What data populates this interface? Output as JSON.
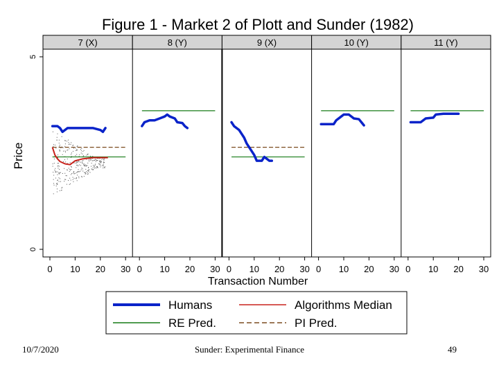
{
  "chart_data": {
    "type": "line",
    "title": "Figure 1 - Market 2 of Plott and Sunder (1982)",
    "xlabel": "Transaction Number",
    "ylabel": "Price",
    "y_ticks": [
      "0",
      "5"
    ],
    "y_tick_values": [
      0,
      5
    ],
    "xlim": [
      0,
      30
    ],
    "ylim": [
      0,
      5
    ],
    "x_ticks": [
      0,
      10,
      20,
      30
    ],
    "legend": {
      "placement": "bottom",
      "entries": [
        {
          "name": "Humans",
          "color": "#0a23c9",
          "style": "thick-solid"
        },
        {
          "name": "Algorithms Median",
          "color": "#c8211b",
          "style": "solid"
        },
        {
          "name": "RE Pred.",
          "color": "#157a15",
          "style": "solid"
        },
        {
          "name": "PI Pred.",
          "color": "#7a4a1e",
          "style": "dashed"
        }
      ]
    },
    "panels": [
      {
        "label": "7 (X)",
        "humans": [
          [
            1,
            3.2
          ],
          [
            3,
            3.2
          ],
          [
            4,
            3.15
          ],
          [
            5,
            3.05
          ],
          [
            6,
            3.1
          ],
          [
            7,
            3.15
          ],
          [
            10,
            3.15
          ],
          [
            14,
            3.15
          ],
          [
            17,
            3.15
          ],
          [
            20,
            3.1
          ],
          [
            21,
            3.05
          ],
          [
            22,
            3.15
          ]
        ],
        "algorithms_median": [
          [
            1,
            2.65
          ],
          [
            2,
            2.45
          ],
          [
            3,
            2.35
          ],
          [
            4,
            2.28
          ],
          [
            6,
            2.22
          ],
          [
            8,
            2.2
          ],
          [
            10,
            2.3
          ],
          [
            13,
            2.35
          ],
          [
            17,
            2.38
          ],
          [
            23,
            2.38
          ]
        ],
        "re_pred": {
          "range": [
            1,
            30
          ],
          "value": 2.4
        },
        "pi_pred": {
          "range": [
            1,
            30
          ],
          "value": 2.65
        },
        "scatter_band": {
          "x_range": [
            1,
            22
          ],
          "y_range": [
            1.1,
            2.8
          ]
        }
      },
      {
        "label": "8 (Y)",
        "humans": [
          [
            1,
            3.2
          ],
          [
            2,
            3.3
          ],
          [
            4,
            3.35
          ],
          [
            6,
            3.35
          ],
          [
            8,
            3.4
          ],
          [
            10,
            3.45
          ],
          [
            11,
            3.5
          ],
          [
            12,
            3.45
          ],
          [
            14,
            3.4
          ],
          [
            15,
            3.3
          ],
          [
            17,
            3.28
          ],
          [
            18,
            3.2
          ],
          [
            19,
            3.15
          ]
        ],
        "re_pred": {
          "range": [
            1,
            30
          ],
          "value": 3.6
        }
      },
      {
        "label": "9 (X)",
        "humans": [
          [
            1,
            3.3
          ],
          [
            2,
            3.2
          ],
          [
            4,
            3.1
          ],
          [
            5,
            3.0
          ],
          [
            6,
            2.9
          ],
          [
            7,
            2.75
          ],
          [
            9,
            2.55
          ],
          [
            10,
            2.45
          ],
          [
            11,
            2.3
          ],
          [
            13,
            2.3
          ],
          [
            14,
            2.4
          ],
          [
            15,
            2.35
          ],
          [
            16,
            2.3
          ],
          [
            17,
            2.3
          ]
        ],
        "re_pred": {
          "range": [
            1,
            30
          ],
          "value": 2.4
        },
        "pi_pred": {
          "range": [
            1,
            30
          ],
          "value": 2.65
        }
      },
      {
        "label": "10 (Y)",
        "humans": [
          [
            1,
            3.25
          ],
          [
            6,
            3.25
          ],
          [
            7,
            3.35
          ],
          [
            9,
            3.45
          ],
          [
            10,
            3.5
          ],
          [
            12,
            3.5
          ],
          [
            14,
            3.4
          ],
          [
            16,
            3.38
          ],
          [
            17,
            3.3
          ],
          [
            18,
            3.22
          ]
        ],
        "re_pred": {
          "range": [
            1,
            30
          ],
          "value": 3.6
        }
      },
      {
        "label": "11 (Y)",
        "humans": [
          [
            1,
            3.3
          ],
          [
            5,
            3.3
          ],
          [
            7,
            3.4
          ],
          [
            10,
            3.42
          ],
          [
            11,
            3.5
          ],
          [
            14,
            3.52
          ],
          [
            17,
            3.52
          ],
          [
            20,
            3.52
          ]
        ],
        "re_pred": {
          "range": [
            1,
            30
          ],
          "value": 3.6
        }
      }
    ]
  },
  "footer": {
    "date": "10/7/2020",
    "center": "Sunder: Experimental Finance",
    "page": "49"
  }
}
